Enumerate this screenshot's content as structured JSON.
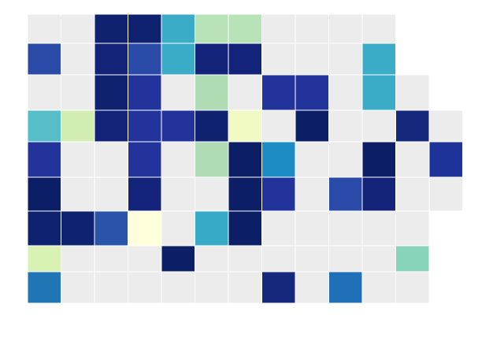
{
  "map": {
    "rows": [
      [
        "#ececec",
        "#ececec",
        "#0f2270",
        "#0f2270",
        "#3aacc8",
        "#b8e2b8",
        "#b8e2b8",
        "#ececec",
        "#ececec",
        "#ececec",
        "#ececec"
      ],
      [
        "#2a4aa8",
        "#ececec",
        "#14237a",
        "#2a4aa8",
        "#3aacc8",
        "#14237a",
        "#14237a",
        "#ececec",
        "#ececec",
        "#ececec",
        "#3aacc8"
      ],
      [
        "#ececec",
        "#ececec",
        "#0f2270",
        "#22349c",
        "#ececec",
        "#b0dcb4",
        "#ececec",
        "#22349c",
        "#22349c",
        "#ececec",
        "#3aacc8",
        "#ececec"
      ],
      [
        "#55bec8",
        "#d2edb2",
        "#14237a",
        "#22349c",
        "#22349c",
        "#0f2270",
        "#f2fac4",
        "#ececec",
        "#0c1f66",
        "#ececec",
        "#ececec",
        "#16287e",
        "#ececec"
      ],
      [
        "#22349c",
        "#ececec",
        "#ececec",
        "#22349c",
        "#ececec",
        "#b0dcb4",
        "#0c1f66",
        "#1c8cc4",
        "#ececec",
        "#ececec",
        "#0c1f66",
        "#ececec",
        "#1e339a"
      ],
      [
        "#0c1f66",
        "#ececec",
        "#ececec",
        "#14237a",
        "#ececec",
        "#ececec",
        "#0c1f66",
        "#22349c",
        "#ececec",
        "#2a4aa8",
        "#14237a",
        "#ececec",
        "#ececec"
      ],
      [
        "#0f2270",
        "#0f2270",
        "#2a54aa",
        "#ffffdc",
        "#ececec",
        "#36aac6",
        "#0c1f66",
        "#ececec",
        "#ececec",
        "#ececec",
        "#ececec",
        "#ececec"
      ],
      [
        "#d8f2b4",
        "#ececec",
        "#ececec",
        "#ececec",
        "#0c1f66",
        "#ececec",
        "#ececec",
        "#ececec",
        "#ececec",
        "#ececec",
        "#ececec",
        "#88d4ba"
      ],
      [
        "#2076b4",
        "#ececec",
        "#ececec",
        "#ececec",
        "#ececec",
        "#ececec",
        "#ececec",
        "#16287e",
        "#ececec",
        "#2070b8",
        "#ececec",
        "#ececec"
      ]
    ]
  }
}
